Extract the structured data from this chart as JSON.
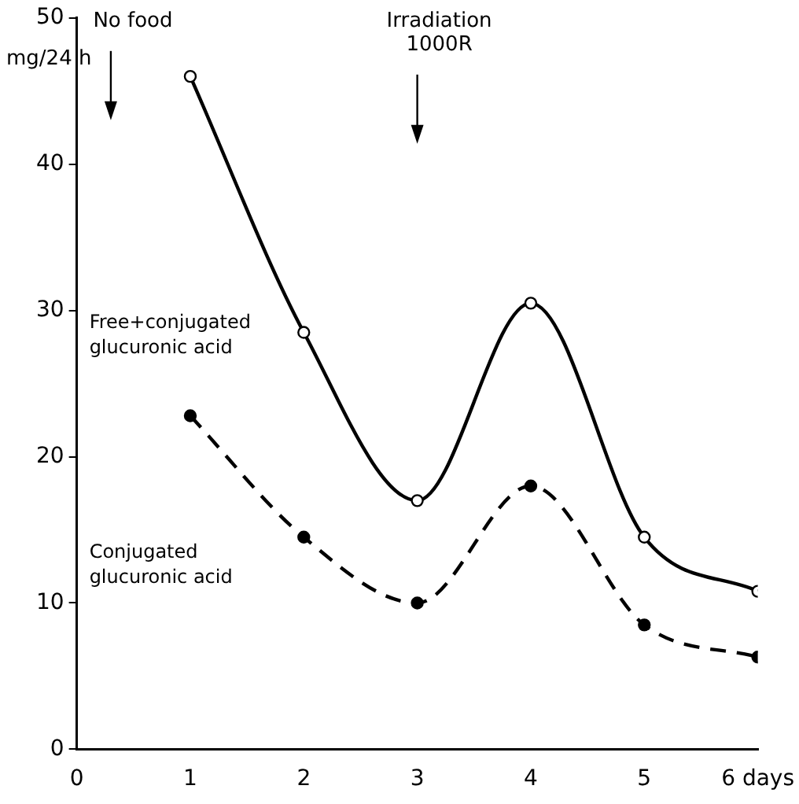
{
  "chart_data": {
    "type": "line",
    "ylabel": "mg/24 h",
    "xlim": [
      0,
      6
    ],
    "xticks": [
      0,
      1,
      2,
      3,
      4,
      5,
      {
        "value": 6,
        "label": "6 days"
      }
    ],
    "ylim": [
      0,
      50
    ],
    "yticks": [
      0,
      10,
      20,
      30,
      40,
      50
    ],
    "grid": false,
    "legend": false,
    "marker": "circle",
    "x": [
      1,
      2,
      3,
      4,
      5,
      6
    ],
    "series": [
      {
        "name": "Free+conjugated glucuronic acid",
        "color": "#000000",
        "line_style": "solid",
        "values": [
          46,
          28.5,
          17,
          30.5,
          14.5,
          10.8
        ]
      },
      {
        "name": "Conjugated glucuronic acid",
        "color": "#000000",
        "line_style": "dashed",
        "values": [
          22.8,
          14.5,
          10,
          18,
          8.5,
          6.3
        ]
      }
    ],
    "annotations": [
      "No food",
      "Irradiation\n1000R"
    ]
  }
}
